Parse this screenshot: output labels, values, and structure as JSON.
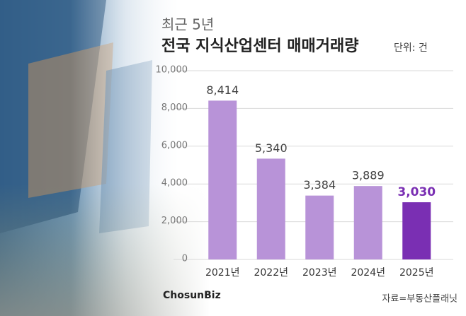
{
  "chart_data": {
    "type": "bar",
    "kicker": "최근 5년",
    "title": "전국 지식산업센터 매매거래량",
    "unit": "단위: 건",
    "source": "자료=부동산플래닛",
    "logo": "ChosunBiz",
    "categories": [
      "2021년",
      "2022년",
      "2023년",
      "2024년",
      "2025년"
    ],
    "values": [
      8414,
      5340,
      3384,
      3889,
      3030
    ],
    "value_labels": [
      "8,414",
      "5,340",
      "3,384",
      "3,889",
      "3,030"
    ],
    "color": "#b893d8",
    "highlight_color": "#7a2fb3",
    "highlight": [
      false,
      false,
      false,
      false,
      true
    ],
    "ylim": [
      0,
      10000
    ],
    "yticks": [
      0,
      {
        "value": 2000,
        "label": "2,000"
      },
      {
        "value": 4000,
        "label": "4,000"
      },
      {
        "value": 6000,
        "label": "6,000"
      },
      {
        "value": 8000,
        "label": "8,000"
      },
      {
        "value": 10000,
        "label": "10,000"
      }
    ],
    "grid": true
  }
}
